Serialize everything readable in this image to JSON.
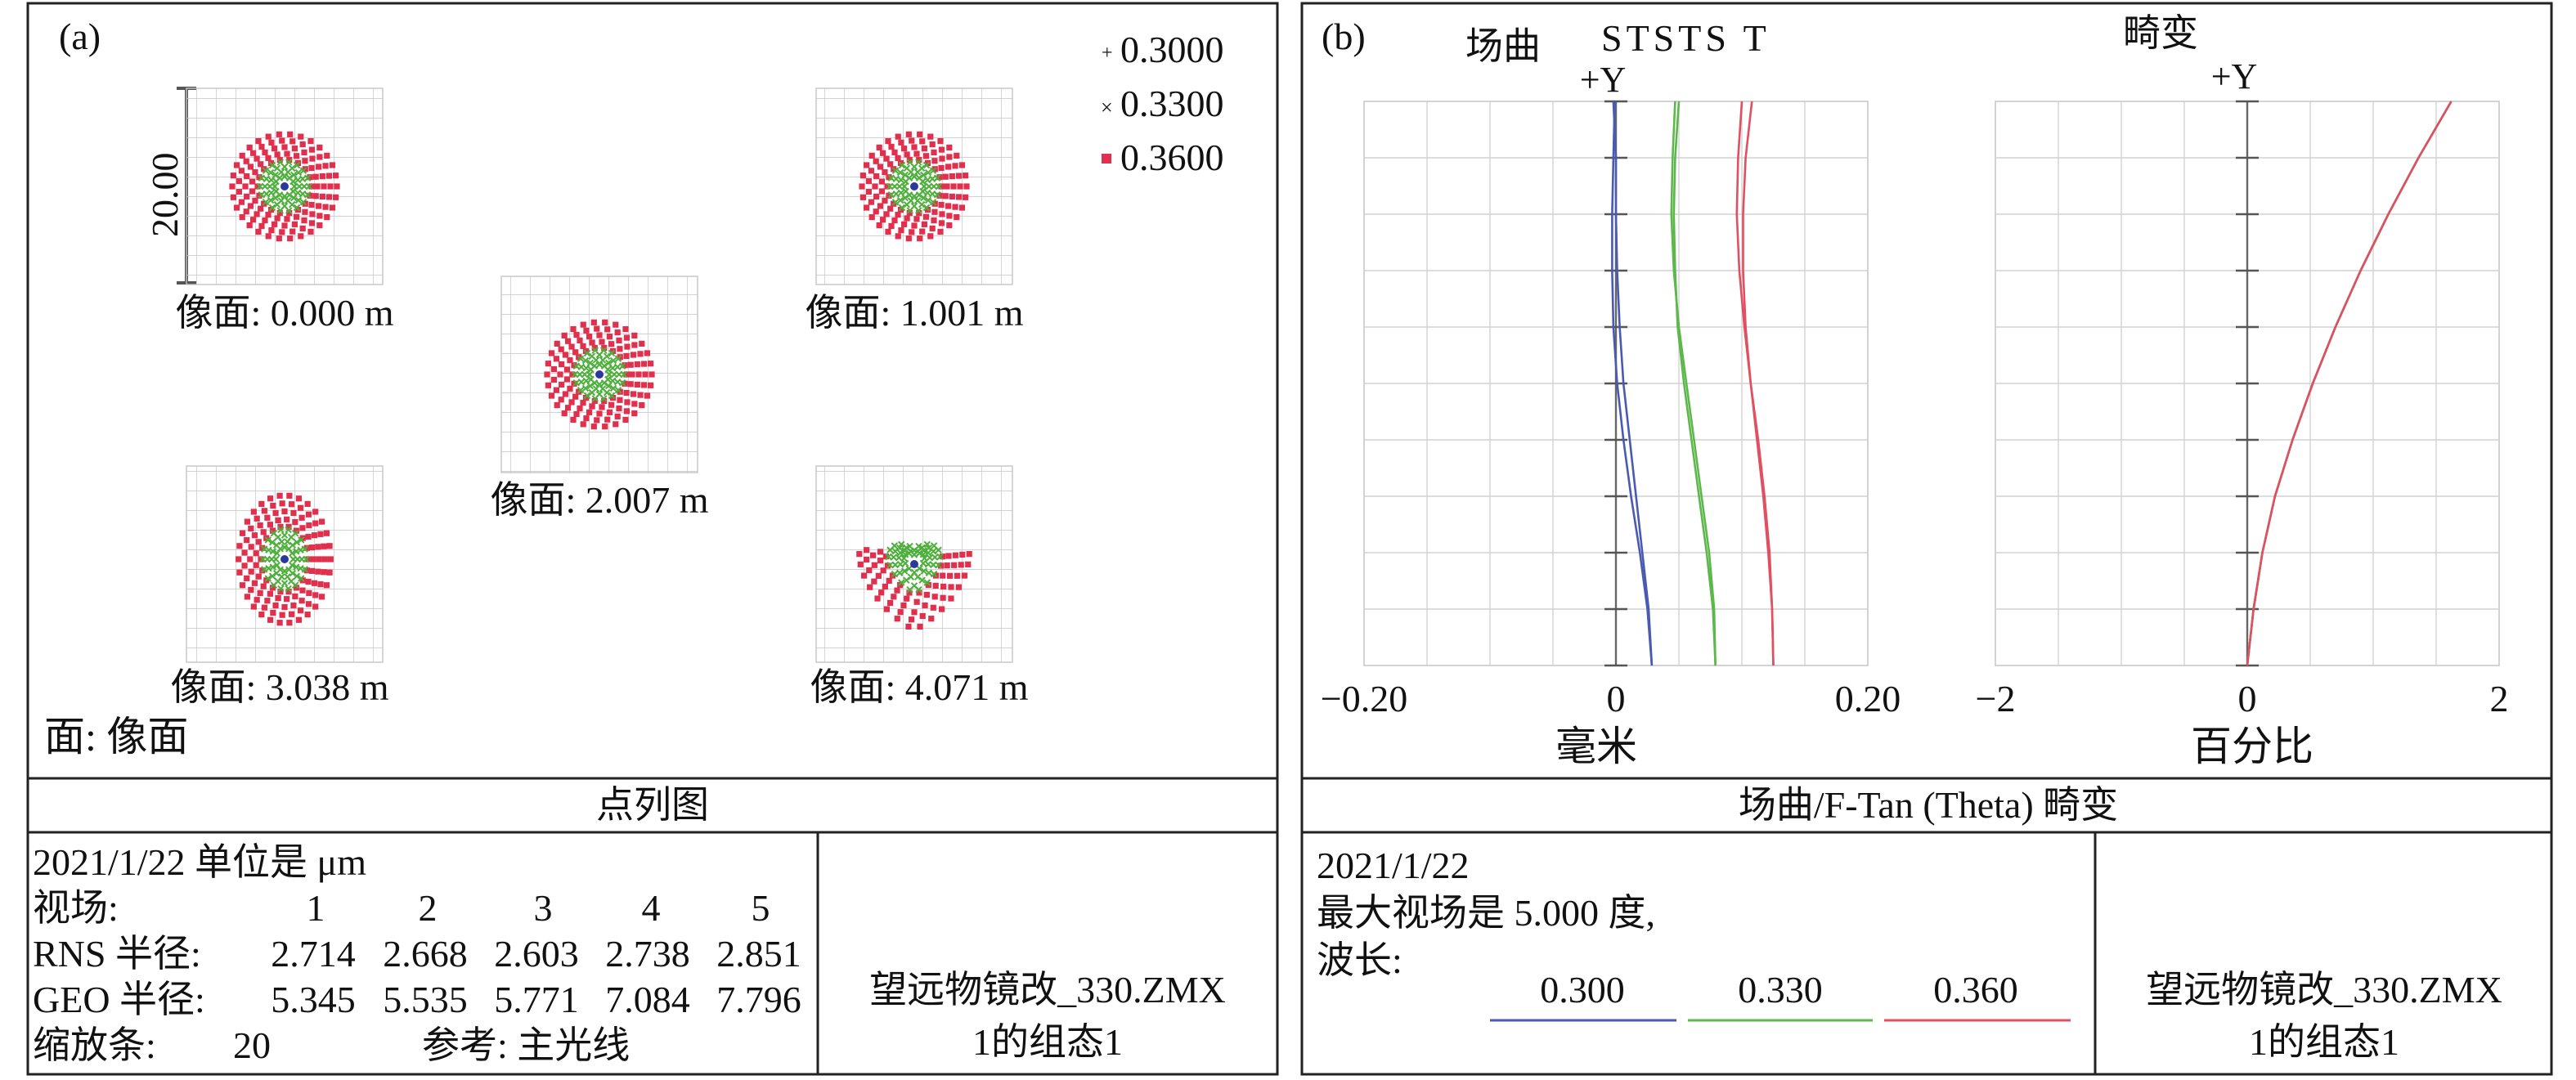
{
  "left_panel": {
    "tag": "(a)",
    "legend": [
      {
        "label": "0.3000",
        "marker": "+",
        "color": "#2b3a9a"
      },
      {
        "label": "0.3300",
        "marker": "×",
        "color": "#4caf3a"
      },
      {
        "label": "0.3600",
        "marker": "▪",
        "color": "#e0304e"
      }
    ],
    "scale_bar_label": "20.00",
    "spots": [
      {
        "label": "像面: 0.000 m",
        "shape": "circle"
      },
      {
        "label": "像面: 1.001 m",
        "shape": "circle"
      },
      {
        "label": "像面: 2.007 m",
        "shape": "circle"
      },
      {
        "label": "像面: 3.038 m",
        "shape": "ellipse"
      },
      {
        "label": "像面: 4.071 m",
        "shape": "comet"
      }
    ],
    "surface_label": "面: 像面",
    "caption": "点列图",
    "info": {
      "line1": "2021/1/22 单位是 μm",
      "field_label": "视场:",
      "fields": [
        "1",
        "2",
        "3",
        "4",
        "5"
      ],
      "rms_label": "RNS 半径:",
      "rms": [
        "2.714",
        "2.668",
        "2.603",
        "2.738",
        "2.851"
      ],
      "geo_label": "GEO 半径:",
      "geo": [
        "5.345",
        "5.535",
        "5.771",
        "7.084",
        "7.796"
      ],
      "scale_label": "缩放条:",
      "scale_value": "20",
      "ref_label": "参考: 主光线"
    },
    "file": "望远物镜改_330.ZMX",
    "config": "1的组态1"
  },
  "right_panel": {
    "tag": "(b)",
    "field_curv_title": "场曲",
    "field_curv_legend": "STSTS T",
    "distortion_title": "畸变",
    "y_label": "+Y",
    "fc_xticks": [
      "−0.20",
      "0",
      "0.20"
    ],
    "fc_xlabel": "毫米",
    "dist_xticks": [
      "−2",
      "0",
      "2"
    ],
    "dist_xlabel": "百分比",
    "caption": "场曲/F-Tan (Theta) 畸变",
    "info": {
      "date": "2021/1/22",
      "max_field": "最大视场是 5.000 度,",
      "wl_label": "波长:",
      "wavelengths": [
        {
          "label": "0.300",
          "color": "#4a5ab0"
        },
        {
          "label": "0.330",
          "color": "#5cb84a"
        },
        {
          "label": "0.360",
          "color": "#e05060"
        }
      ]
    },
    "file": "望远物镜改_330.ZMX",
    "config": "1的组态1"
  },
  "chart_data": [
    {
      "type": "line",
      "name": "field-curvature",
      "xlabel": "毫米",
      "xlim": [
        -0.2,
        0.2
      ],
      "ylabel": "+Y",
      "ylim": [
        0,
        1
      ],
      "series": [
        {
          "wavelength": "0.300",
          "kind": "S",
          "color": "#4a5ab0",
          "x": [
            0.0285,
            0.025,
            0.019,
            0.012,
            0.006,
            0.001,
            -0.002,
            -0.003,
            -0.003,
            -0.002,
            -0.001
          ],
          "y": [
            0,
            0.1,
            0.2,
            0.3,
            0.4,
            0.5,
            0.6,
            0.7,
            0.8,
            0.9,
            1.0
          ]
        },
        {
          "wavelength": "0.300",
          "kind": "T",
          "color": "#4a5ab0",
          "x": [
            0.0285,
            0.026,
            0.021,
            0.016,
            0.011,
            0.006,
            0.003,
            0.001,
            0.0,
            0.0,
            -0.002
          ],
          "y": [
            0,
            0.1,
            0.2,
            0.3,
            0.4,
            0.5,
            0.6,
            0.7,
            0.8,
            0.9,
            1.0
          ]
        },
        {
          "wavelength": "0.330",
          "kind": "S",
          "color": "#5cb84a",
          "x": [
            0.079,
            0.078,
            0.074,
            0.068,
            0.062,
            0.056,
            0.05,
            0.046,
            0.044,
            0.045,
            0.047
          ],
          "y": [
            0,
            0.1,
            0.2,
            0.3,
            0.4,
            0.5,
            0.6,
            0.7,
            0.8,
            0.9,
            1.0
          ]
        },
        {
          "wavelength": "0.330",
          "kind": "T",
          "color": "#5cb84a",
          "x": [
            0.079,
            0.077,
            0.072,
            0.066,
            0.06,
            0.054,
            0.049,
            0.047,
            0.046,
            0.047,
            0.05
          ],
          "y": [
            0,
            0.1,
            0.2,
            0.3,
            0.4,
            0.5,
            0.6,
            0.7,
            0.8,
            0.9,
            1.0
          ]
        },
        {
          "wavelength": "0.360",
          "kind": "S",
          "color": "#e05060",
          "x": [
            0.125,
            0.124,
            0.122,
            0.118,
            0.113,
            0.107,
            0.102,
            0.098,
            0.096,
            0.097,
            0.1
          ],
          "y": [
            0,
            0.1,
            0.2,
            0.3,
            0.4,
            0.5,
            0.6,
            0.7,
            0.8,
            0.9,
            1.0
          ]
        },
        {
          "wavelength": "0.360",
          "kind": "T",
          "color": "#e05060",
          "x": [
            0.125,
            0.124,
            0.121,
            0.117,
            0.112,
            0.107,
            0.103,
            0.101,
            0.101,
            0.103,
            0.108
          ],
          "y": [
            0,
            0.1,
            0.2,
            0.3,
            0.4,
            0.5,
            0.6,
            0.7,
            0.8,
            0.9,
            1.0
          ]
        }
      ]
    },
    {
      "type": "line",
      "name": "f-tan-theta-distortion",
      "xlabel": "百分比",
      "xlim": [
        -2,
        2
      ],
      "ylabel": "+Y",
      "ylim": [
        0,
        1
      ],
      "series": [
        {
          "wavelength": "0.300",
          "color": "#4a5ab0",
          "x": [
            0,
            0.05,
            0.12,
            0.22,
            0.36,
            0.52,
            0.7,
            0.9,
            1.12,
            1.36,
            1.62
          ],
          "y": [
            0,
            0.1,
            0.2,
            0.3,
            0.4,
            0.5,
            0.6,
            0.7,
            0.8,
            0.9,
            1.0
          ]
        },
        {
          "wavelength": "0.330",
          "color": "#5cb84a",
          "x": [
            0,
            0.05,
            0.12,
            0.22,
            0.36,
            0.52,
            0.7,
            0.9,
            1.12,
            1.36,
            1.62
          ],
          "y": [
            0,
            0.1,
            0.2,
            0.3,
            0.4,
            0.5,
            0.6,
            0.7,
            0.8,
            0.9,
            1.0
          ]
        },
        {
          "wavelength": "0.360",
          "color": "#e05060",
          "x": [
            0,
            0.05,
            0.12,
            0.22,
            0.36,
            0.52,
            0.7,
            0.9,
            1.12,
            1.36,
            1.62
          ],
          "y": [
            0,
            0.1,
            0.2,
            0.3,
            0.4,
            0.5,
            0.6,
            0.7,
            0.8,
            0.9,
            1.0
          ]
        }
      ]
    }
  ]
}
